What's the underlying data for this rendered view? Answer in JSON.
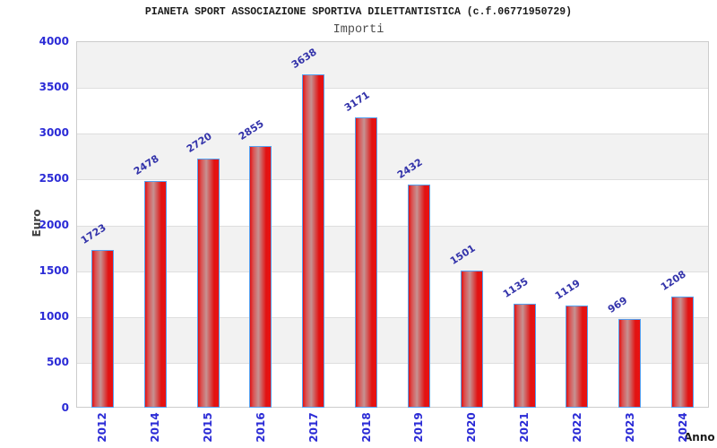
{
  "chart_data": {
    "type": "bar",
    "title": "PIANETA SPORT ASSOCIAZIONE SPORTIVA DILETTANTISTICA (c.f.06771950729)",
    "subtitle": "Importi",
    "xlabel": "Anno",
    "ylabel": "Euro",
    "categories": [
      "2012",
      "2014",
      "2015",
      "2016",
      "2017",
      "2018",
      "2019",
      "2020",
      "2021",
      "2022",
      "2023",
      "2024"
    ],
    "values": [
      1723,
      2478,
      2720,
      2855,
      3638,
      3171,
      2432,
      1501,
      1135,
      1119,
      969,
      1208
    ],
    "ylim": [
      0,
      4000
    ],
    "ytick_step": 500,
    "yticks": [
      0,
      500,
      1000,
      1500,
      2000,
      2500,
      3000,
      3500,
      4000
    ],
    "grid": "horizontal-bands",
    "legend_position": "none",
    "colors": {
      "bar_red": "#e11212",
      "bar_highlight": "#c69292",
      "bar_border": "#55a0f0",
      "tick_label_blue": "#2b2bd6",
      "value_label_blue": "#3333aa",
      "band_gray": "#f2f2f2",
      "gridline_gray": "#dedede",
      "plot_border": "#cccccc",
      "title_black": "#1a1a1a",
      "subtitle_gray": "#4d4d4d"
    }
  }
}
